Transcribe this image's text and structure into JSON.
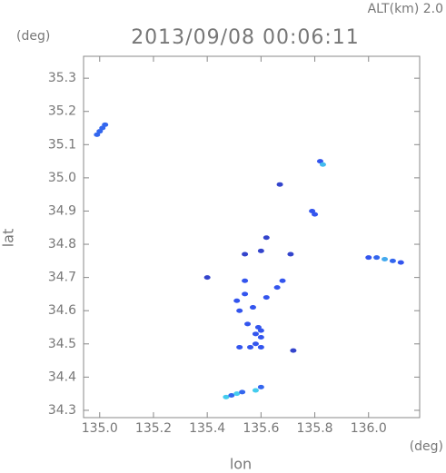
{
  "chart_data": {
    "type": "scatter",
    "title": "2013/09/08 00:06:11",
    "subtitle": "ALT(km) 2.0",
    "y_unit": "(deg)",
    "x_unit": "(deg)",
    "xlabel": "lon",
    "ylabel": "lat",
    "xlim": [
      134.94,
      136.19
    ],
    "ylim": [
      34.278,
      35.366
    ],
    "xticks": [
      {
        "value": 135.0,
        "label": "135.0"
      },
      135.2,
      135.4,
      135.6,
      135.8,
      {
        "value": 136.0,
        "label": "136.0"
      }
    ],
    "yticks": [
      34.3,
      34.4,
      34.5,
      34.6,
      34.7,
      34.8,
      34.9,
      {
        "value": 35.0,
        "label": "35.0"
      },
      35.1,
      35.2,
      35.3
    ],
    "x": [
      134.99,
      135.0,
      135.01,
      135.02,
      135.82,
      135.83,
      135.67,
      135.79,
      135.8,
      135.62,
      135.6,
      135.71,
      136.0,
      136.03,
      136.06,
      136.09,
      136.12,
      135.54,
      135.4,
      135.54,
      135.68,
      135.51,
      135.54,
      135.62,
      135.66,
      135.52,
      135.57,
      135.55,
      135.59,
      135.6,
      135.58,
      135.58,
      135.6,
      135.6,
      135.52,
      135.56,
      135.72,
      135.47,
      135.49,
      135.51,
      135.53,
      135.58,
      135.6
    ],
    "values": [
      35.13,
      35.14,
      35.15,
      35.16,
      35.05,
      35.04,
      34.98,
      34.9,
      34.89,
      34.82,
      34.78,
      34.77,
      34.76,
      34.76,
      34.755,
      34.75,
      34.745,
      34.77,
      34.7,
      34.69,
      34.69,
      34.63,
      34.65,
      34.64,
      34.67,
      34.6,
      34.61,
      34.56,
      34.55,
      34.54,
      34.53,
      34.5,
      34.49,
      34.52,
      34.49,
      34.49,
      34.48,
      34.34,
      34.345,
      34.35,
      34.355,
      34.36,
      34.37
    ],
    "colors": [
      "#3366ee",
      "#3366ee",
      "#3366ee",
      "#3366ee",
      "#3355ee",
      "#44bbee",
      "#3344cc",
      "#3355ee",
      "#3355ee",
      "#3344cc",
      "#3344cc",
      "#3344cc",
      "#3355ee",
      "#3366ee",
      "#44aaee",
      "#3366ee",
      "#3355ee",
      "#3344cc",
      "#3344cc",
      "#3355ee",
      "#3355ee",
      "#3355ee",
      "#3355ee",
      "#3355ee",
      "#3355ee",
      "#3355ee",
      "#3355ee",
      "#3355ee",
      "#3355ee",
      "#3355ee",
      "#3355ee",
      "#3355ee",
      "#3355ee",
      "#3355ee",
      "#3355ee",
      "#3355ee",
      "#3344cc",
      "#44ccee",
      "#3366ee",
      "#44ccee",
      "#3366ee",
      "#44ccee",
      "#3366ee"
    ]
  }
}
